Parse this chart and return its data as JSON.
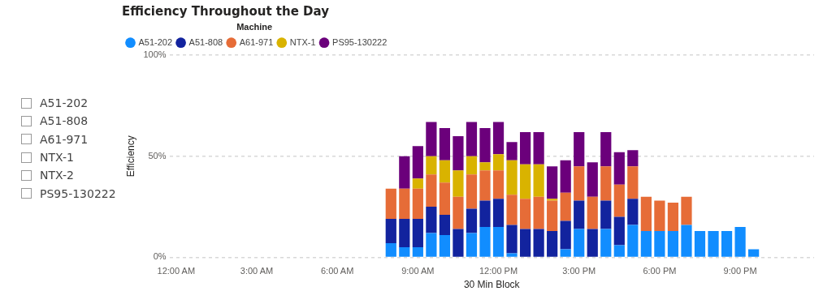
{
  "chart_data": {
    "type": "bar",
    "stacked": true,
    "title": "Efficiency Throughout the Day",
    "legend_title": "Machine",
    "legend": "top left",
    "xlabel": "30 Min Block",
    "ylabel": "Efficiency",
    "grid": "y",
    "ylim": [
      0,
      100
    ],
    "yticks": [
      {
        "value": 0,
        "label": "0%"
      },
      {
        "value": 50,
        "label": "50%"
      },
      {
        "value": 100,
        "label": "100%"
      }
    ],
    "annotations": [
      "A51-202",
      "A51-808",
      "A61-971",
      "NTX-1",
      "NTX-2",
      "PS95-130222"
    ],
    "categories": [
      "12:00 AM",
      null,
      null,
      null,
      null,
      null,
      "3:00 AM",
      null,
      null,
      null,
      null,
      null,
      "6:00 AM",
      null,
      null,
      null,
      null,
      null,
      "9:00 AM",
      null,
      null,
      null,
      null,
      null,
      "12:00 PM",
      null,
      null,
      null,
      null,
      null,
      "3:00 PM",
      null,
      null,
      null,
      null,
      null,
      "6:00 PM",
      null,
      null,
      null,
      null,
      null,
      "9:00 PM",
      null,
      null,
      null,
      null,
      null
    ],
    "series": [
      {
        "name": "A51-202",
        "color": "#118dff",
        "values": [
          null,
          null,
          null,
          null,
          null,
          null,
          null,
          null,
          null,
          null,
          null,
          null,
          null,
          null,
          null,
          null,
          7,
          5,
          5,
          12,
          11,
          null,
          12,
          15,
          15,
          2,
          null,
          null,
          null,
          4,
          14,
          null,
          14,
          6,
          16,
          13,
          13,
          13,
          16,
          13,
          13,
          13,
          15,
          4,
          null,
          null,
          null,
          null
        ]
      },
      {
        "name": "A51-808",
        "color": "#12239e",
        "values": [
          null,
          null,
          null,
          null,
          null,
          null,
          null,
          null,
          null,
          null,
          null,
          null,
          null,
          null,
          null,
          null,
          12,
          14,
          14,
          13,
          10,
          14,
          12,
          13,
          14,
          14,
          14,
          14,
          13,
          14,
          14,
          14,
          14,
          14,
          13,
          null,
          null,
          null,
          null,
          null,
          null,
          null,
          null,
          null,
          null,
          null,
          null,
          null
        ]
      },
      {
        "name": "A61-971",
        "color": "#e66c37",
        "values": [
          null,
          null,
          null,
          null,
          null,
          null,
          null,
          null,
          null,
          null,
          null,
          null,
          null,
          null,
          null,
          null,
          15,
          15,
          15,
          16,
          16,
          16,
          17,
          15,
          14,
          15,
          15,
          16,
          15,
          14,
          17,
          16,
          17,
          16,
          16,
          17,
          15,
          14,
          14,
          null,
          null,
          null,
          null,
          null,
          null,
          null,
          null,
          null
        ]
      },
      {
        "name": "NTX-1",
        "color": "#d9b300",
        "values": [
          null,
          null,
          null,
          null,
          null,
          null,
          null,
          null,
          null,
          null,
          null,
          null,
          null,
          null,
          null,
          null,
          null,
          null,
          5,
          9,
          11,
          13,
          9,
          4,
          8,
          17,
          17,
          16,
          1,
          null,
          null,
          null,
          null,
          null,
          null,
          null,
          null,
          null,
          null,
          null,
          null,
          null,
          null,
          null,
          null,
          null,
          null,
          null
        ]
      },
      {
        "name": "PS95-130222",
        "color": "#6b007b",
        "values": [
          null,
          null,
          null,
          null,
          null,
          null,
          null,
          null,
          null,
          null,
          null,
          null,
          null,
          null,
          null,
          null,
          null,
          16,
          16,
          17,
          16,
          17,
          17,
          17,
          16,
          9,
          16,
          16,
          16,
          16,
          17,
          17,
          17,
          16,
          8,
          null,
          null,
          null,
          null,
          null,
          null,
          null,
          null,
          null,
          null,
          null,
          null,
          null
        ]
      }
    ]
  }
}
